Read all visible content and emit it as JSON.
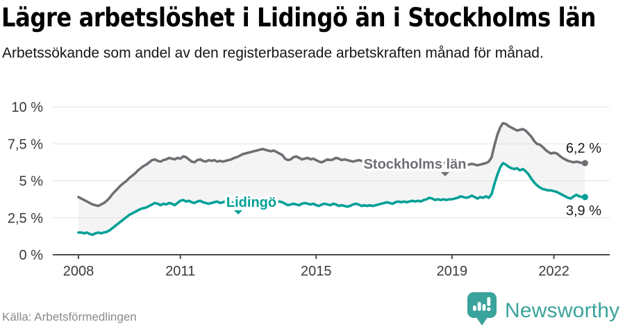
{
  "header": {
    "title": "Lägre arbetslöshet i Lidingö än i Stockholms län",
    "subtitle": "Arbetssökande som andel av den registerbaserade arbetskraften månad för månad."
  },
  "footer": {
    "source": "Källa: Arbetsförmedlingen",
    "brand": "Newsworthy",
    "brand_icon": "newsworthy-speech-bubble-barchart-icon",
    "brand_color": "#3aa39b"
  },
  "colors": {
    "background": "#ffffff",
    "gridline": "#e2e2e2",
    "axis": "#4b4b4b",
    "band_fill": "#f4f4f5",
    "stockholm": "#6e6e74",
    "lidingo": "#00a096",
    "value_label": "#1a1a1a",
    "tick_text": "#3a3a3a"
  },
  "chart_data": {
    "type": "line",
    "x_unit": "month",
    "x_start": "2008-01",
    "x_end": "2022-12",
    "ylim": [
      0,
      10
    ],
    "grid": "horizontal",
    "legend_position": "inline-on-line",
    "band_fill_between_series": true,
    "yticks": [
      {
        "value": 0,
        "label": "0 %"
      },
      {
        "value": 2.5,
        "label": "2,5 %"
      },
      {
        "value": 5,
        "label": "5 %"
      },
      {
        "value": 7.5,
        "label": "7,5 %"
      },
      {
        "value": 10,
        "label": "10 %"
      }
    ],
    "xticks": [
      {
        "value": 2008,
        "label": "2008"
      },
      {
        "value": 2011,
        "label": "2011"
      },
      {
        "value": 2015,
        "label": "2015"
      },
      {
        "value": 2019,
        "label": "2019"
      },
      {
        "value": 2022,
        "label": "2022"
      }
    ],
    "series": [
      {
        "name": "Stockholms län",
        "color": "#6e6e74",
        "end_value": 6.2,
        "end_value_label": "6,2 %",
        "values": [
          3.9,
          3.8,
          3.7,
          3.6,
          3.5,
          3.4,
          3.35,
          3.3,
          3.4,
          3.5,
          3.65,
          3.85,
          4.1,
          4.3,
          4.5,
          4.7,
          4.85,
          5.0,
          5.2,
          5.35,
          5.5,
          5.7,
          5.85,
          6.0,
          6.1,
          6.25,
          6.4,
          6.45,
          6.35,
          6.3,
          6.4,
          6.45,
          6.55,
          6.5,
          6.45,
          6.55,
          6.5,
          6.65,
          6.6,
          6.45,
          6.3,
          6.25,
          6.4,
          6.45,
          6.35,
          6.3,
          6.4,
          6.35,
          6.4,
          6.3,
          6.35,
          6.3,
          6.35,
          6.4,
          6.45,
          6.55,
          6.6,
          6.7,
          6.8,
          6.85,
          6.9,
          6.95,
          7.0,
          7.05,
          7.1,
          7.15,
          7.1,
          7.05,
          7.0,
          7.05,
          6.95,
          6.85,
          6.75,
          6.5,
          6.4,
          6.45,
          6.6,
          6.65,
          6.55,
          6.45,
          6.5,
          6.55,
          6.45,
          6.5,
          6.4,
          6.3,
          6.25,
          6.35,
          6.45,
          6.4,
          6.45,
          6.55,
          6.5,
          6.4,
          6.45,
          6.4,
          6.35,
          6.3,
          6.35,
          6.4,
          6.35,
          6.3,
          6.4,
          6.45,
          6.4,
          6.3,
          6.35,
          6.3,
          6.3,
          6.35,
          6.4,
          6.35,
          6.3,
          6.25,
          6.35,
          6.4,
          6.35,
          6.3,
          6.35,
          6.3,
          6.25,
          6.3,
          6.35,
          6.3,
          6.2,
          6.25,
          6.3,
          6.35,
          6.25,
          6.2,
          6.25,
          6.2,
          6.15,
          6.1,
          6.0,
          5.95,
          6.0,
          6.05,
          6.1,
          6.15,
          6.1,
          6.05,
          6.1,
          6.15,
          6.2,
          6.3,
          6.6,
          7.4,
          8.1,
          8.6,
          8.9,
          8.85,
          8.7,
          8.6,
          8.5,
          8.4,
          8.45,
          8.5,
          8.4,
          8.2,
          8.0,
          7.7,
          7.5,
          7.45,
          7.3,
          7.1,
          6.95,
          6.85,
          6.9,
          6.85,
          6.7,
          6.55,
          6.45,
          6.35,
          6.3,
          6.25,
          6.3,
          6.25,
          6.2,
          6.2
        ]
      },
      {
        "name": "Lidingö",
        "color": "#00a096",
        "end_value": 3.9,
        "end_value_label": "3,9 %",
        "values": [
          1.5,
          1.5,
          1.45,
          1.5,
          1.4,
          1.35,
          1.45,
          1.5,
          1.45,
          1.5,
          1.55,
          1.65,
          1.8,
          1.95,
          2.1,
          2.25,
          2.4,
          2.55,
          2.7,
          2.8,
          2.9,
          3.0,
          3.1,
          3.15,
          3.2,
          3.3,
          3.4,
          3.5,
          3.45,
          3.35,
          3.45,
          3.4,
          3.5,
          3.45,
          3.35,
          3.5,
          3.65,
          3.7,
          3.6,
          3.65,
          3.55,
          3.5,
          3.6,
          3.65,
          3.55,
          3.5,
          3.45,
          3.5,
          3.55,
          3.6,
          3.5,
          3.55,
          3.6,
          3.55,
          3.5,
          3.55,
          3.6,
          3.55,
          3.6,
          3.65,
          3.6,
          3.65,
          3.7,
          3.65,
          3.7,
          3.65,
          3.6,
          3.65,
          3.6,
          3.65,
          3.55,
          3.6,
          3.55,
          3.45,
          3.35,
          3.4,
          3.45,
          3.4,
          3.35,
          3.45,
          3.5,
          3.45,
          3.4,
          3.45,
          3.35,
          3.3,
          3.4,
          3.45,
          3.4,
          3.35,
          3.45,
          3.4,
          3.3,
          3.35,
          3.3,
          3.25,
          3.3,
          3.4,
          3.45,
          3.4,
          3.3,
          3.35,
          3.3,
          3.35,
          3.3,
          3.35,
          3.4,
          3.45,
          3.5,
          3.55,
          3.5,
          3.45,
          3.55,
          3.6,
          3.55,
          3.6,
          3.55,
          3.6,
          3.65,
          3.6,
          3.65,
          3.6,
          3.7,
          3.75,
          3.85,
          3.8,
          3.7,
          3.75,
          3.7,
          3.75,
          3.7,
          3.75,
          3.75,
          3.8,
          3.85,
          3.95,
          3.9,
          3.85,
          3.9,
          4.0,
          3.9,
          3.8,
          3.9,
          3.85,
          3.95,
          3.85,
          4.1,
          4.8,
          5.4,
          5.9,
          6.2,
          6.1,
          5.95,
          5.85,
          5.8,
          5.85,
          5.7,
          5.8,
          5.65,
          5.45,
          5.15,
          4.9,
          4.7,
          4.55,
          4.45,
          4.4,
          4.35,
          4.35,
          4.3,
          4.25,
          4.15,
          4.05,
          3.95,
          3.85,
          3.8,
          3.95,
          4.05,
          3.95,
          3.9,
          3.9
        ]
      }
    ]
  }
}
